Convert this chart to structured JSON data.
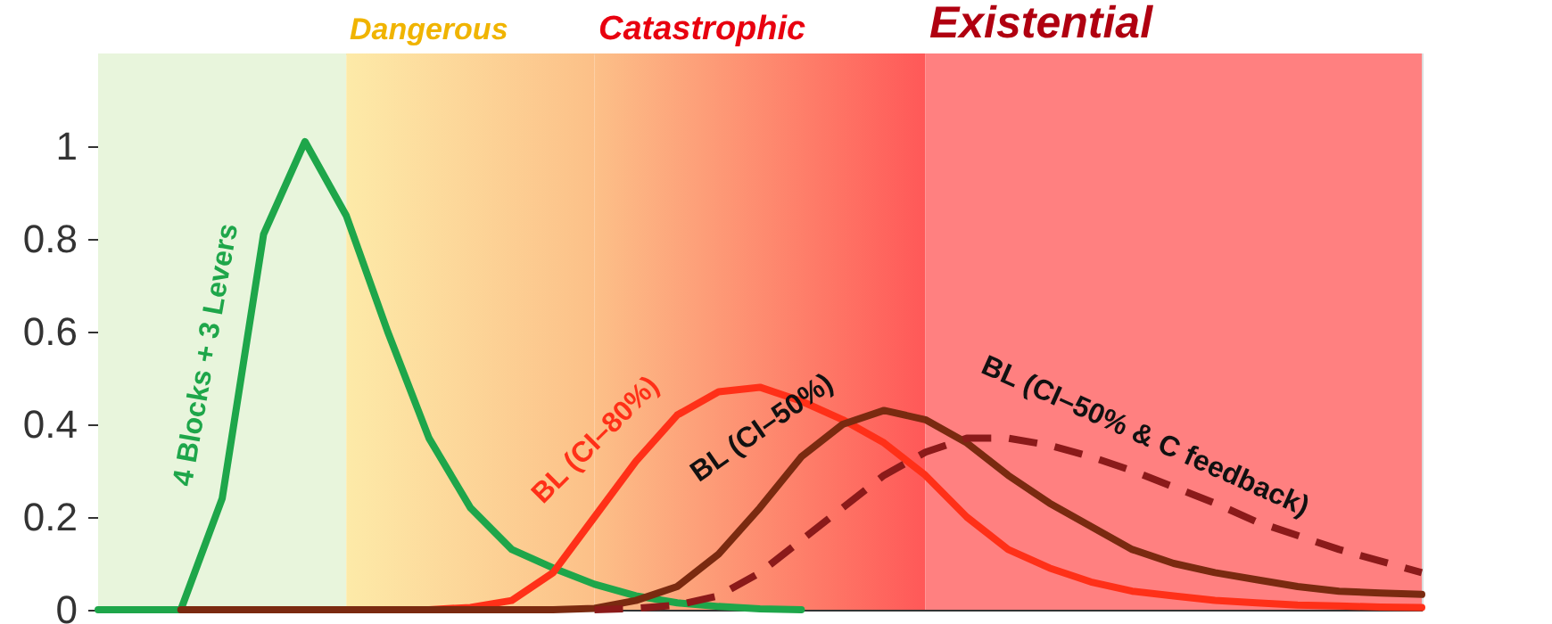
{
  "chart_data": {
    "type": "line",
    "categories": [
      null,
      null,
      null,
      null,
      null,
      null,
      null,
      null,
      null,
      null,
      null,
      null,
      null,
      null,
      null,
      null,
      null,
      null,
      null,
      null,
      null,
      null,
      null,
      null,
      null,
      null,
      null,
      null,
      null,
      null,
      null,
      null,
      null
    ],
    "ylim": [
      0,
      1.2
    ],
    "yticks": [
      0,
      0.2,
      0.4,
      0.6,
      0.8,
      1
    ],
    "tick_labels": "y",
    "annotations": [
      "Dangerous",
      "Catastrophic",
      "Existential"
    ],
    "series": [
      {
        "name": "4 Blocks + 3 Levers",
        "color": "#1ea64a",
        "values": [
          0,
          0,
          0,
          0.24,
          0.81,
          1.01,
          0.85,
          0.6,
          0.37,
          0.22,
          0.13,
          0.09,
          0.055,
          0.03,
          0.015,
          0.007,
          0.002,
          0,
          null,
          null,
          null,
          null,
          null,
          null,
          null,
          null,
          null,
          null,
          null,
          null,
          null,
          null,
          null
        ]
      },
      {
        "name": "BL (CI–80%)",
        "color": "#ff3018",
        "values": [
          null,
          null,
          null,
          null,
          null,
          null,
          0,
          0,
          0,
          0.005,
          0.02,
          0.08,
          0.2,
          0.32,
          0.42,
          0.47,
          0.48,
          0.45,
          0.41,
          0.36,
          0.29,
          0.2,
          0.13,
          0.09,
          0.06,
          0.04,
          0.03,
          0.02,
          0.015,
          0.01,
          0.008,
          0.006,
          0.005
        ]
      },
      {
        "name": "BL (CI–50%)",
        "color": "#7a2a10",
        "values": [
          null,
          null,
          0,
          0,
          0,
          0,
          0,
          0,
          0,
          0,
          0,
          0,
          0.003,
          0.02,
          0.05,
          0.12,
          0.22,
          0.33,
          0.4,
          0.43,
          0.41,
          0.36,
          0.29,
          0.23,
          0.18,
          0.13,
          0.1,
          0.08,
          0.065,
          0.05,
          0.04,
          0.036,
          0.033
        ]
      },
      {
        "name": "BL (CI–50% & C feedback)",
        "color": "#8b1a1a",
        "line_style": "dashed",
        "values": [
          null,
          null,
          null,
          null,
          null,
          null,
          null,
          null,
          null,
          null,
          null,
          null,
          0,
          0.003,
          0.01,
          0.03,
          0.08,
          0.15,
          0.22,
          0.29,
          0.34,
          0.37,
          0.37,
          0.355,
          0.33,
          0.3,
          0.265,
          0.23,
          0.19,
          0.16,
          0.13,
          0.105,
          0.08
        ]
      }
    ]
  }
}
